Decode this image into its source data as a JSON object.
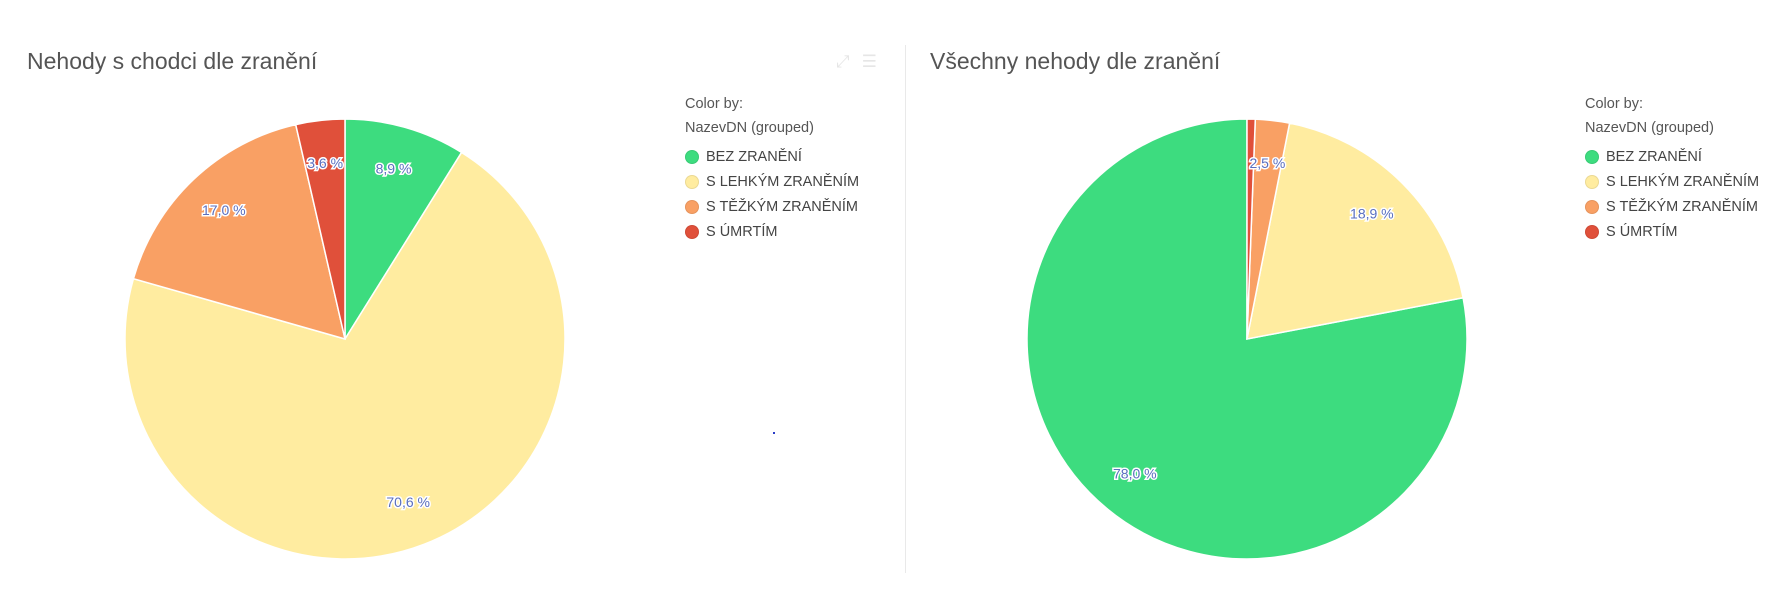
{
  "chart_data": [
    {
      "type": "pie",
      "title": "Nehody s chodci dle zranění",
      "legend_heading": [
        "Color by:",
        "NazevDN (grouped)"
      ],
      "legend_position": "right",
      "categories": [
        "BEZ ZRANĚNÍ",
        "S LEHKÝM ZRANĚNÍM",
        "S TĚŽKÝM ZRANĚNÍM",
        "S ÚMRTÍM"
      ],
      "values": [
        8.9,
        70.6,
        17.0,
        3.6
      ],
      "value_labels": [
        "8,9 %",
        "70,6 %",
        "17,0 %",
        "3,6 %"
      ],
      "colors": [
        "#3ddc7f",
        "#ffeca0",
        "#f9a064",
        "#e0503a"
      ]
    },
    {
      "type": "pie",
      "title": "Všechny nehody dle zranění",
      "legend_heading": [
        "Color by:",
        "NazevDN (grouped)"
      ],
      "legend_position": "right",
      "categories": [
        "BEZ ZRANĚNÍ",
        "S LEHKÝM ZRANĚNÍM",
        "S TĚŽKÝM ZRANĚNÍM",
        "S ÚMRTÍM"
      ],
      "values": [
        78.0,
        18.9,
        2.5,
        0.6
      ],
      "value_labels": [
        "78,0 %",
        "18,9 %",
        "2,5 %",
        ""
      ],
      "colors": [
        "#3ddc7f",
        "#ffeca0",
        "#f9a064",
        "#e0503a"
      ]
    }
  ]
}
